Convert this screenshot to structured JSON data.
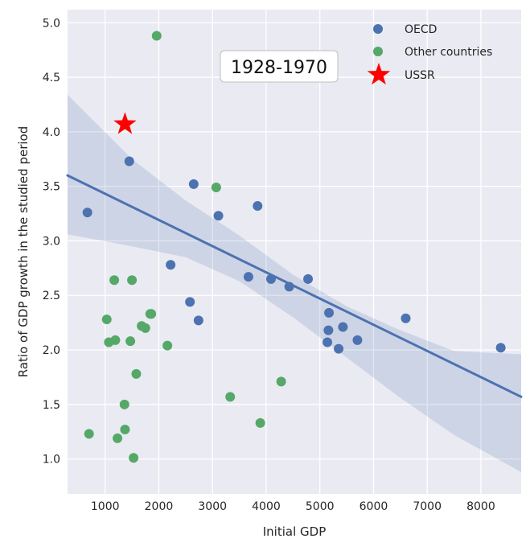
{
  "chart_data": {
    "type": "scatter",
    "title": "",
    "annotation": "1928-1970",
    "xlabel": "Initial GDP",
    "ylabel": "Ratio of GDP growth in the studied period",
    "xlim": [
      300,
      8750
    ],
    "ylim": [
      0.68,
      5.12
    ],
    "xticks": [
      1000,
      2000,
      3000,
      4000,
      5000,
      6000,
      7000,
      8000
    ],
    "yticks": [
      1.0,
      1.5,
      2.0,
      2.5,
      3.0,
      3.5,
      4.0,
      4.5,
      5.0
    ],
    "xtick_labels": [
      "1000",
      "2000",
      "3000",
      "4000",
      "5000",
      "6000",
      "7000",
      "8000"
    ],
    "ytick_labels": [
      "1.0",
      "1.5",
      "2.0",
      "2.5",
      "3.0",
      "3.5",
      "4.0",
      "4.5",
      "5.0"
    ],
    "grid": true,
    "legend_position": "top-right",
    "series": [
      {
        "name": "OECD",
        "color": "#4c72b0",
        "marker": "circle",
        "points": [
          [
            670,
            3.26
          ],
          [
            1450,
            3.73
          ],
          [
            2220,
            2.78
          ],
          [
            2580,
            2.44
          ],
          [
            2650,
            3.52
          ],
          [
            2740,
            2.27
          ],
          [
            3110,
            3.23
          ],
          [
            3670,
            2.67
          ],
          [
            3840,
            3.32
          ],
          [
            4090,
            2.65
          ],
          [
            4430,
            2.58
          ],
          [
            4780,
            2.65
          ],
          [
            5140,
            2.07
          ],
          [
            5160,
            2.18
          ],
          [
            5170,
            2.34
          ],
          [
            5350,
            2.01
          ],
          [
            5430,
            2.21
          ],
          [
            5700,
            2.09
          ],
          [
            6600,
            2.29
          ],
          [
            8370,
            2.02
          ]
        ]
      },
      {
        "name": "Other countries",
        "color": "#55a868",
        "marker": "circle",
        "points": [
          [
            700,
            1.23
          ],
          [
            1030,
            2.28
          ],
          [
            1070,
            2.07
          ],
          [
            1170,
            2.64
          ],
          [
            1190,
            2.09
          ],
          [
            1230,
            1.19
          ],
          [
            1360,
            1.5
          ],
          [
            1370,
            1.27
          ],
          [
            1470,
            2.08
          ],
          [
            1500,
            2.64
          ],
          [
            1530,
            1.01
          ],
          [
            1580,
            1.78
          ],
          [
            1680,
            2.22
          ],
          [
            1750,
            2.2
          ],
          [
            1840,
            2.33
          ],
          [
            1860,
            2.33
          ],
          [
            1960,
            4.88
          ],
          [
            2160,
            2.04
          ],
          [
            3070,
            3.49
          ],
          [
            3330,
            1.57
          ],
          [
            3890,
            1.33
          ],
          [
            4280,
            1.71
          ]
        ]
      },
      {
        "name": "USSR",
        "color": "#ff0000",
        "marker": "star",
        "points": [
          [
            1370,
            4.07
          ]
        ]
      }
    ],
    "regression": {
      "x_start": 300,
      "y_start": 3.6,
      "x_end": 8750,
      "y_end": 1.57,
      "color": "#4c72b0",
      "ci_band": [
        [
          300,
          3.06,
          4.34
        ],
        [
          1500,
          2.95,
          3.75
        ],
        [
          2500,
          2.85,
          3.37
        ],
        [
          3500,
          2.63,
          3.05
        ],
        [
          4500,
          2.3,
          2.69
        ],
        [
          5500,
          1.93,
          2.4
        ],
        [
          6500,
          1.56,
          2.18
        ],
        [
          7500,
          1.22,
          1.99
        ],
        [
          8750,
          0.88,
          1.96
        ]
      ]
    }
  }
}
